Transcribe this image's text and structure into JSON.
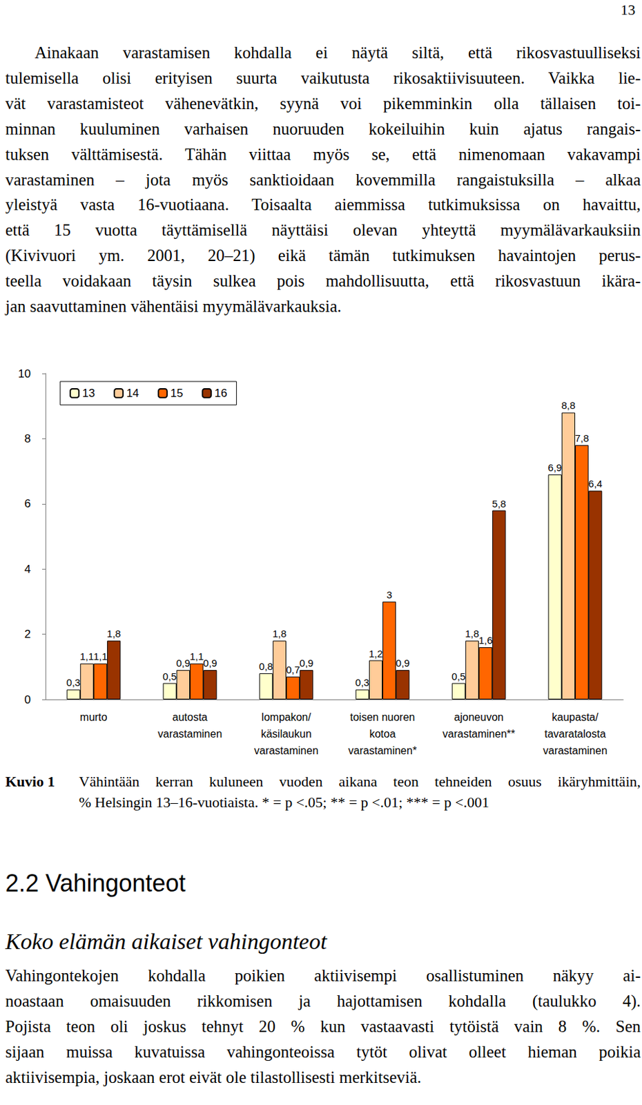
{
  "page_number": "13",
  "paragraph_1": {
    "lines": [
      "Ainakaan varastamisen kohdalla ei näytä siltä, että rikosvastuulliseksi",
      "tulemisella olisi erityisen suurta vaikutusta rikosaktiivisuuteen. Vaikka lie-",
      "vät varastamisteot vähenevätkin, syynä voi pikemminkin olla tällaisen toi-",
      "minnan kuuluminen varhaisen nuoruuden kokeiluihin kuin ajatus rangais-",
      "tuksen välttämisestä. Tähän viittaa myös se, että nimenomaan vakavampi",
      "varastaminen – jota myös sanktioidaan kovemmilla rangaistuksilla – alkaa",
      "yleistyä vasta 16-vuotiaana. Toisaalta aiemmissa tutkimuksissa on havaittu,",
      "että 15 vuotta täyttämisellä näyttäisi olevan yhteyttä myymälävarkauksiin",
      "(Kivivuori ym. 2001, 20–21) eikä tämän tutkimuksen havaintojen perus-",
      "teella voidakaan täysin sulkea pois mahdollisuutta, että rikosvastuun ikära-",
      "jan saavuttaminen vähentäisi myymälävarkauksia."
    ]
  },
  "chart_data": {
    "type": "bar",
    "categories": [
      "murto",
      "autosta\nvarastaminen",
      "lompakon/\nkäsilaukun\nvarastaminen",
      "toisen nuoren\nkotoa\nvarastaminen*",
      "ajoneuvon\nvarastaminen**",
      "kaupasta/\ntavaratalosta\nvarastaminen"
    ],
    "series": [
      {
        "name": "13",
        "color": "#FFFFCC",
        "values": [
          0.3,
          0.5,
          0.8,
          0.3,
          0.5,
          6.9
        ],
        "value_labels": [
          "0,3",
          "0,5",
          "0,8",
          "0,3",
          "0,5",
          "6,9"
        ]
      },
      {
        "name": "14",
        "color": "#FFCC99",
        "values": [
          1.1,
          0.9,
          1.8,
          1.2,
          1.8,
          8.8
        ],
        "value_labels": [
          "1,1",
          "0,9",
          "1,8",
          "1,2",
          "1,8",
          "8,8"
        ]
      },
      {
        "name": "15",
        "color": "#FF6600",
        "values": [
          1.1,
          1.1,
          0.7,
          3,
          1.6,
          7.8
        ],
        "value_labels": [
          "1,1",
          "1,1",
          "0,7",
          "3",
          "1,6",
          "7,8"
        ]
      },
      {
        "name": "16",
        "color": "#993300",
        "values": [
          1.8,
          0.9,
          0.9,
          0.9,
          5.8,
          6.4
        ],
        "value_labels": [
          "1,8",
          "0,9",
          "0,9",
          "0,9",
          "5,8",
          "6,4"
        ]
      }
    ],
    "ylim": [
      0,
      10
    ],
    "yticks": [
      0,
      2,
      4,
      6,
      8,
      10
    ],
    "grid": false,
    "legend": "top-left",
    "data_labels": true
  },
  "caption": {
    "label": "Kuvio 1",
    "lines": [
      "Vähintään kerran kuluneen vuoden aikana teon tehneiden osuus ikäryhmittäin,",
      "% Helsingin 13–16-vuotiaista. * = p <.05; ** = p <.01; *** = p <.001"
    ]
  },
  "section_heading": "2.2 Vahingonteot",
  "subheading": "Koko elämän aikaiset vahingonteot",
  "paragraph_2": {
    "lines": [
      "Vahingontekojen kohdalla poikien aktiivisempi osallistuminen näkyy ai-",
      "noastaan omaisuuden rikkomisen ja hajottamisen kohdalla (taulukko 4).",
      "Pojista teon oli joskus tehnyt 20 % kun vastaavasti tytöistä vain 8 %. Sen",
      "sijaan muissa kuvatuissa vahingonteoissa tytöt olivat olleet hieman poikia",
      "aktiivisempia, joskaan erot eivät ole tilastollisesti merkitseviä."
    ]
  }
}
